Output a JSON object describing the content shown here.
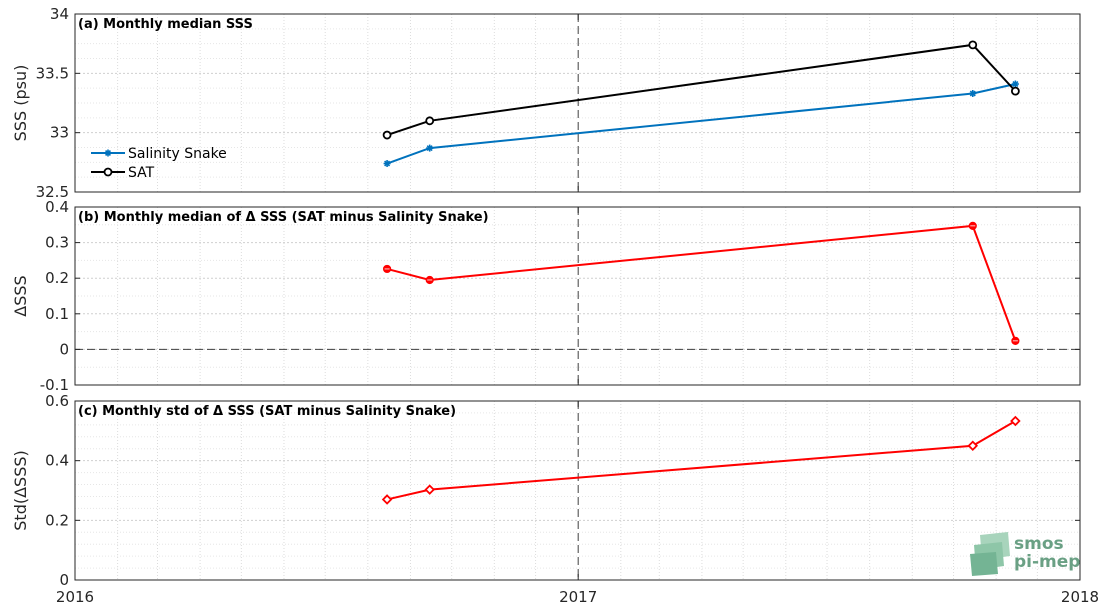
{
  "chart_data": [
    {
      "type": "line",
      "title": "(a) Monthly median SSS",
      "ylabel": "SSS (psu)",
      "ylim": [
        32.5,
        34
      ],
      "yticks": [
        "32.5",
        "33",
        "33.5",
        "34"
      ],
      "xlim": [
        "2016-01-01",
        "2018-01-01"
      ],
      "grid": true,
      "legend_position": "left",
      "series": [
        {
          "name": "Salinity Snake",
          "color": "#0072bd",
          "marker": "asterisk",
          "x": [
            "2016-08-15",
            "2016-09-15",
            "2017-10-15",
            "2017-11-15"
          ],
          "values": [
            32.74,
            32.87,
            33.33,
            33.41
          ]
        },
        {
          "name": "SAT",
          "color": "#000000",
          "marker": "circle",
          "x": [
            "2016-08-15",
            "2016-09-15",
            "2017-10-15",
            "2017-11-15"
          ],
          "values": [
            32.98,
            33.1,
            33.74,
            33.35
          ]
        }
      ],
      "annotations": {
        "vertical_dashed_line": "2017-01-01"
      }
    },
    {
      "type": "line",
      "title": "(b) Monthly median of Δ SSS (SAT minus Salinity Snake)",
      "ylabel": "ΔSSS",
      "ylim": [
        -0.1,
        0.4
      ],
      "yticks": [
        "-0.1",
        "0",
        "0.1",
        "0.2",
        "0.3",
        "0.4"
      ],
      "xlim": [
        "2016-01-01",
        "2018-01-01"
      ],
      "grid": true,
      "series": [
        {
          "color": "#ff0000",
          "marker": "asterisk-circle",
          "x": [
            "2016-08-15",
            "2016-09-15",
            "2017-10-15",
            "2017-11-15"
          ],
          "values": [
            0.226,
            0.195,
            0.347,
            0.024
          ]
        }
      ],
      "annotations": {
        "vertical_dashed_line": "2017-01-01",
        "horizontal_dashed_line": 0
      }
    },
    {
      "type": "line",
      "title": "(c) Monthly std of Δ SSS (SAT minus Salinity Snake)",
      "ylabel": "Std(ΔSSS)",
      "ylim": [
        0,
        0.6
      ],
      "yticks": [
        "0",
        "0.2",
        "0.4",
        "0.6"
      ],
      "xlim": [
        "2016-01-01",
        "2018-01-01"
      ],
      "xticks": [
        "2016",
        "2017",
        "2018"
      ],
      "grid": true,
      "series": [
        {
          "color": "#ff0000",
          "marker": "diamond",
          "x": [
            "2016-08-15",
            "2016-09-15",
            "2017-10-15",
            "2017-11-15"
          ],
          "values": [
            0.27,
            0.303,
            0.45,
            0.533
          ]
        }
      ],
      "annotations": {
        "vertical_dashed_line": "2017-01-01"
      }
    }
  ],
  "logo": {
    "line1": "smos",
    "line2": "pi-mep",
    "color": "#6aa084"
  }
}
